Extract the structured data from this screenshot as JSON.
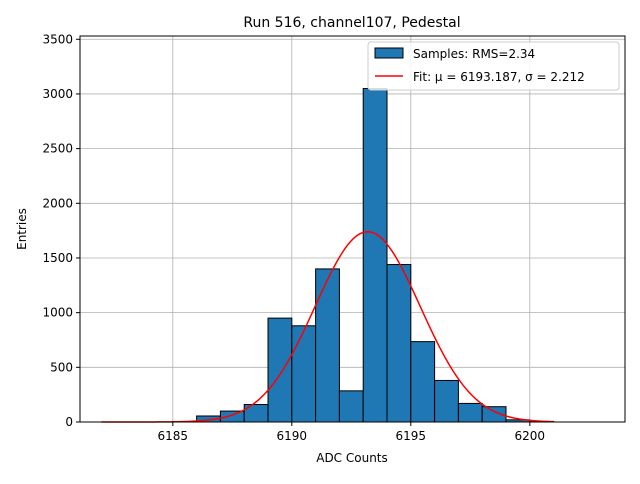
{
  "chart_data": {
    "type": "bar",
    "title": "Run 516, channel107, Pedestal",
    "xlabel": "ADC Counts",
    "ylabel": "Entries",
    "xlim": [
      6181.1,
      6204.0
    ],
    "ylim": [
      0,
      3530
    ],
    "xticks": [
      6185,
      6190,
      6195,
      6200
    ],
    "yticks": [
      0,
      500,
      1000,
      1500,
      2000,
      2500,
      3000,
      3500
    ],
    "grid": true,
    "legend_position": "top-right",
    "bin_width": 1,
    "bins": {
      "left_edges": [
        6182,
        6183,
        6184,
        6185,
        6186,
        6187,
        6188,
        6189,
        6190,
        6191,
        6192,
        6193,
        6194,
        6195,
        6196,
        6197,
        6198,
        6199,
        6200,
        6201,
        6202
      ],
      "values": [
        0,
        0,
        0,
        5,
        55,
        100,
        160,
        950,
        880,
        1400,
        285,
        3050,
        1440,
        735,
        380,
        170,
        140,
        20,
        5,
        0,
        0
      ]
    },
    "series": [
      {
        "name": "Samples: RMS=2.34",
        "kind": "histogram",
        "color": "#1f77b4"
      },
      {
        "name": "Fit: μ = 6193.187, σ = 2.212",
        "kind": "gaussian",
        "color": "#ff0000",
        "mu": 6193.187,
        "sigma": 2.212,
        "amplitude": 1740,
        "x_range": [
          6182,
          6201
        ]
      }
    ]
  }
}
